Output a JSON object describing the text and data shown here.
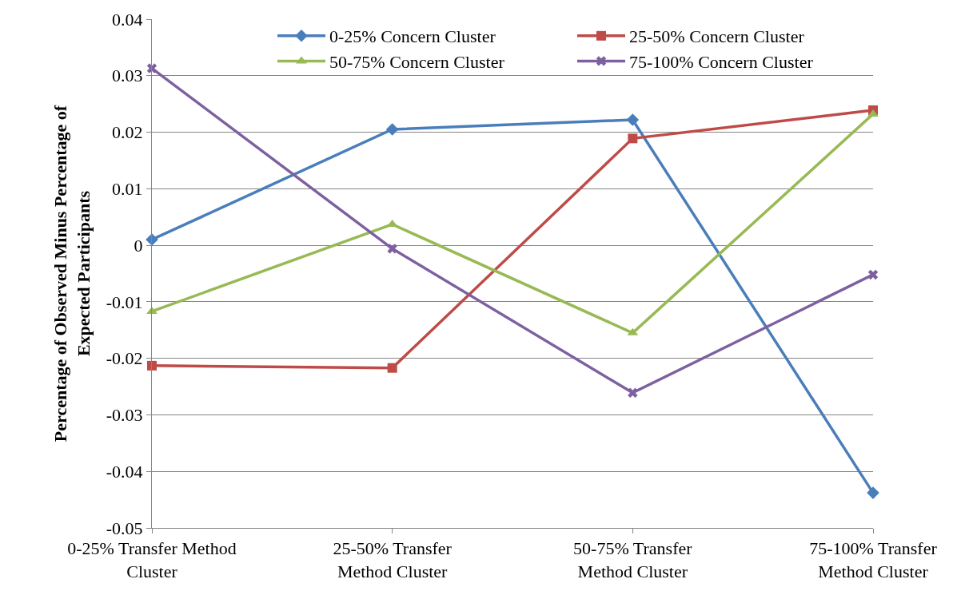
{
  "chart_data": {
    "type": "line",
    "ylabel": "Percentage of Observed Minus Percentage of Expected Participants",
    "categories": [
      "0-25% Transfer Method Cluster",
      "25-50% Transfer Method Cluster",
      "50-75% Transfer Method Cluster",
      "75-100% Transfer Method Cluster"
    ],
    "series": [
      {
        "name": "0-25% Concern Cluster",
        "color": "#4a7ebb",
        "marker": "diamond",
        "values": [
          0.001,
          0.0205,
          0.0222,
          -0.0438
        ]
      },
      {
        "name": "25-50% Concern Cluster",
        "color": "#be4b48",
        "marker": "square",
        "values": [
          -0.0213,
          -0.0217,
          0.0189,
          0.0239
        ]
      },
      {
        "name": "50-75% Concern Cluster",
        "color": "#98b954",
        "marker": "triangle",
        "values": [
          -0.0117,
          0.0037,
          -0.0155,
          0.0232
        ]
      },
      {
        "name": "75-100% Concern Cluster",
        "color": "#7d60a0",
        "marker": "cross",
        "values": [
          0.0313,
          -0.0006,
          -0.0261,
          -0.0052
        ]
      }
    ],
    "ylim": [
      -0.05,
      0.04
    ],
    "yticks": [
      -0.05,
      -0.04,
      -0.03,
      -0.02,
      -0.01,
      0,
      0.01,
      0.02,
      0.03,
      0.04
    ],
    "grid": "y",
    "legend": "top right",
    "line_style": "solid"
  }
}
